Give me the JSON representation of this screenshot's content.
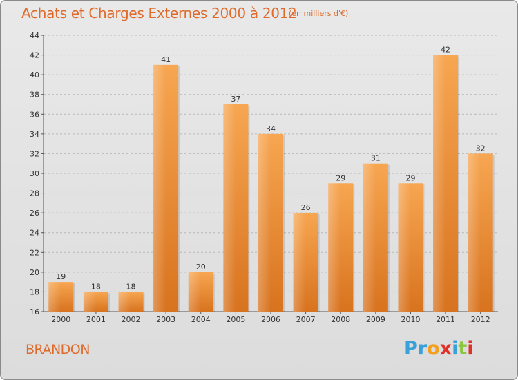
{
  "header": {
    "title": "Achats et Charges Externes 2000 à 2012",
    "subtitle": "(en milliers d'€)"
  },
  "footer": {
    "place": "BRANDON",
    "logo_letters": [
      "P",
      "r",
      "o",
      "x",
      "i",
      "t",
      "i"
    ],
    "logo_colors": [
      "#3aa0d8",
      "#3aa0d8",
      "#f2a020",
      "#e0302a",
      "#3aa0d8",
      "#8cc63e",
      "#e0302a"
    ]
  },
  "chart_data": {
    "type": "bar",
    "title": "Achats et Charges Externes 2000 à 2012",
    "xlabel": "",
    "ylabel": "",
    "categories": [
      "2000",
      "2001",
      "2002",
      "2003",
      "2004",
      "2005",
      "2006",
      "2007",
      "2008",
      "2009",
      "2010",
      "2011",
      "2012"
    ],
    "values": [
      19,
      18,
      18,
      41,
      20,
      37,
      34,
      26,
      29,
      31,
      29,
      42,
      32
    ],
    "ylim": [
      16,
      44
    ],
    "yticks": [
      16,
      18,
      20,
      22,
      24,
      26,
      28,
      30,
      32,
      34,
      36,
      38,
      40,
      42,
      44
    ],
    "grid": true,
    "bar_color": "#f08a30"
  }
}
